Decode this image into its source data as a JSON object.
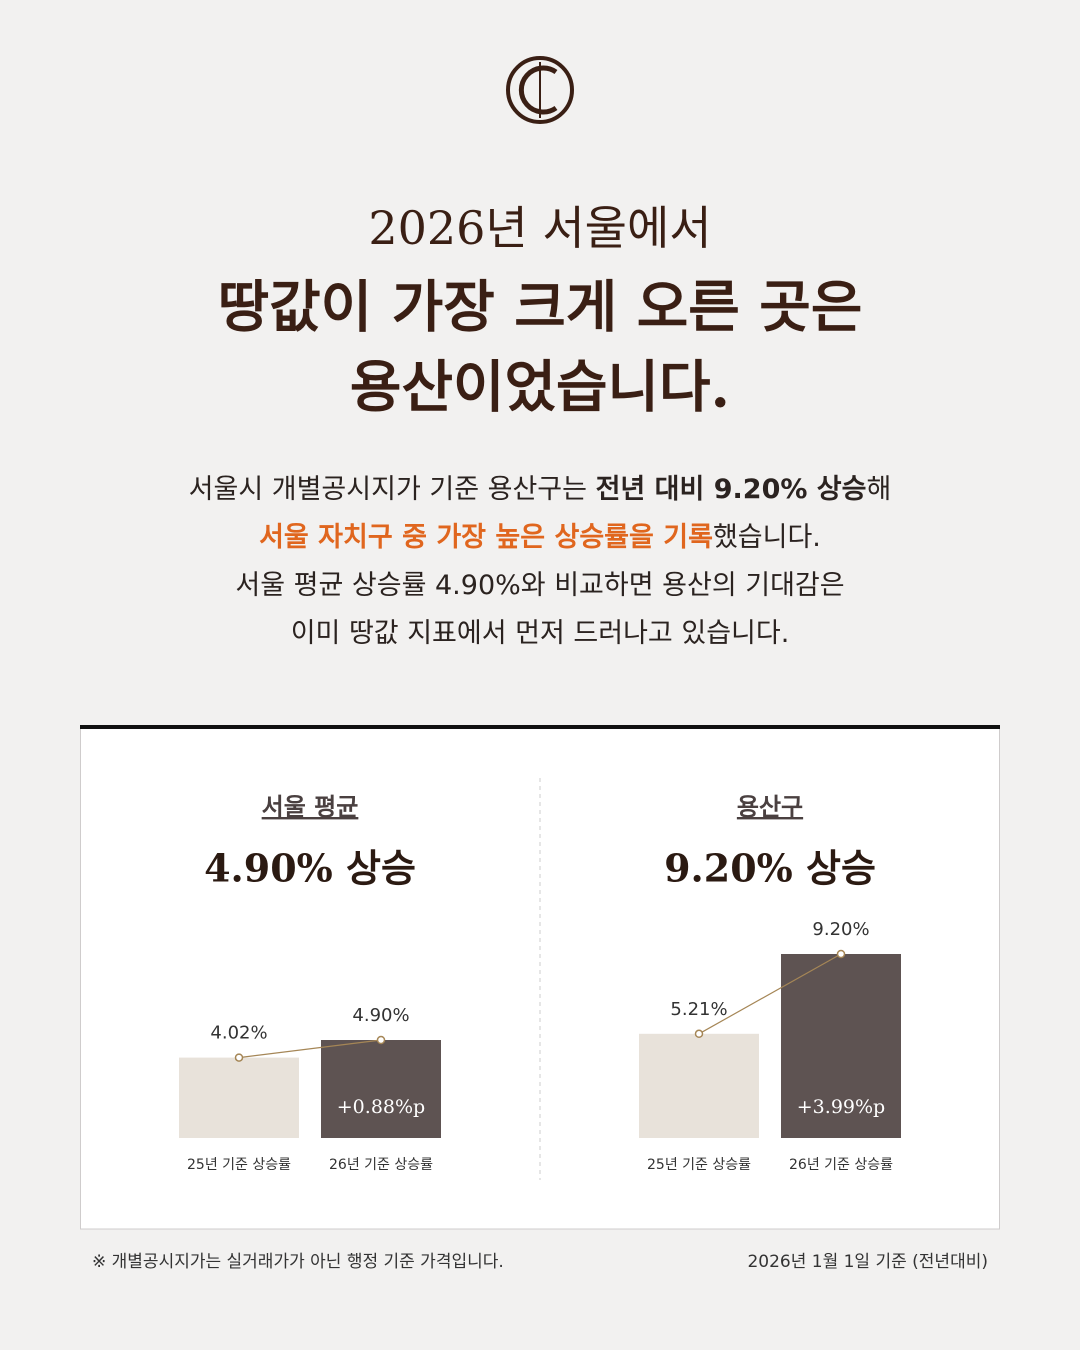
{
  "header": {
    "line1": "2026년 서울에서",
    "line2": "땅값이 가장 크게 오른 곳은",
    "line3": "용산이었습니다."
  },
  "body": {
    "lines": [
      [
        {
          "text": "서울시 개별공시지가 기준 용산구는 ",
          "style": "normal"
        },
        {
          "text": "전년 대비 9.20% 상승",
          "style": "bold"
        },
        {
          "text": "해",
          "style": "normal"
        }
      ],
      [
        {
          "text": "서울 자치구 중 가장 높은 상승률을 기록",
          "style": "accent"
        },
        {
          "text": "했습니다.",
          "style": "normal"
        }
      ],
      [
        {
          "text": "서울 평균 상승률 4.90%와 비교하면 용산의 기대감은",
          "style": "normal"
        }
      ],
      [
        {
          "text": "이미 땅값 지표에서 먼저 드러나고 있습니다.",
          "style": "normal"
        }
      ]
    ]
  },
  "chart_data": [
    {
      "type": "bar",
      "title": "서울 평균",
      "subtitle": "4.90% 상승",
      "categories": [
        "25년 기준 상승률",
        "26년 기준 상승률"
      ],
      "values": [
        4.02,
        4.9
      ],
      "value_labels": [
        "4.02%",
        "4.90%"
      ],
      "colors": [
        "#e8e2da",
        "#5e5352"
      ],
      "line_color": "#a58656",
      "annotation": "+0.88%p"
    },
    {
      "type": "bar",
      "title": "용산구",
      "subtitle": "9.20% 상승",
      "categories": [
        "25년 기준 상승률",
        "26년 기준 상승률"
      ],
      "values": [
        5.21,
        9.2
      ],
      "value_labels": [
        "5.21%",
        "9.20%"
      ],
      "colors": [
        "#e8e2da",
        "#5e5352"
      ],
      "line_color": "#a58656",
      "annotation": "+3.99%p"
    }
  ],
  "footer": {
    "note": "※ 개별공시지가는 실거래가가 아닌 행정 기준 가격입니다.",
    "date": "2026년 1월 1일 기준 (전년대비)"
  }
}
